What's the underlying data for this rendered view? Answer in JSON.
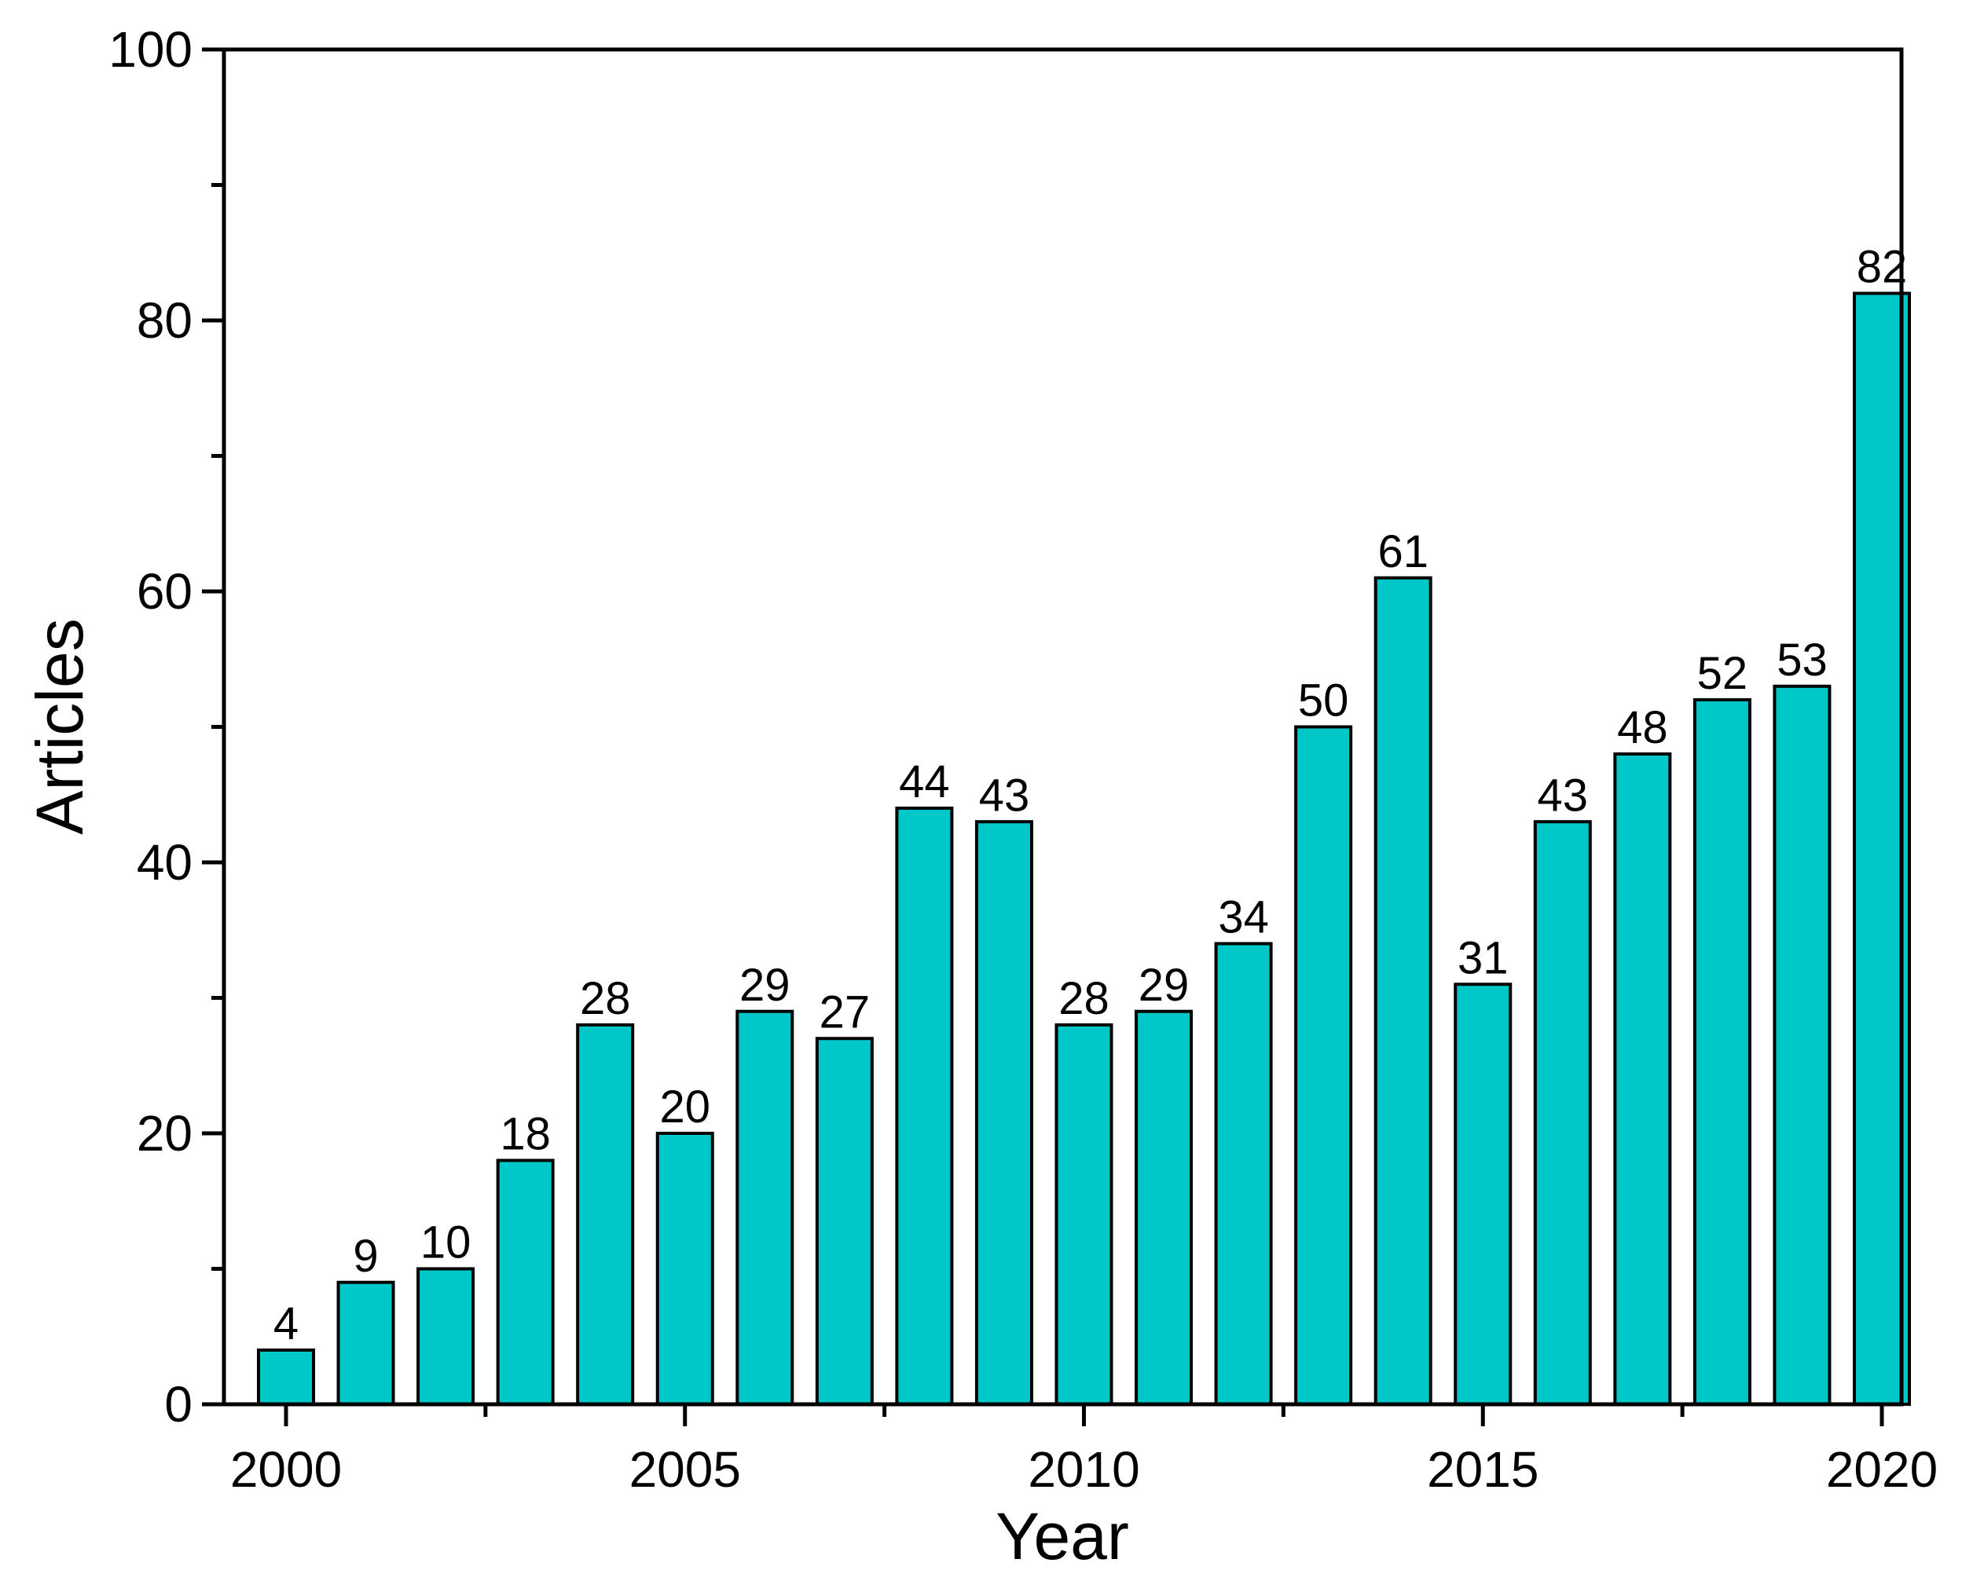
{
  "chart_data": {
    "type": "bar",
    "xlabel": "Year",
    "ylabel": "Articles",
    "categories": [
      "2000",
      "2001",
      "2002",
      "2003",
      "2004",
      "2005",
      "2006",
      "2007",
      "2008",
      "2009",
      "2010",
      "2011",
      "2012",
      "2013",
      "2014",
      "2015",
      "2016",
      "2017",
      "2018",
      "2019",
      "2020"
    ],
    "values": [
      4,
      9,
      10,
      18,
      28,
      20,
      29,
      27,
      44,
      43,
      28,
      29,
      34,
      50,
      61,
      31,
      43,
      48,
      52,
      53,
      82
    ],
    "ylim": [
      0,
      100
    ],
    "yticks": [
      "0",
      "20",
      "40",
      "60",
      "80",
      "100"
    ],
    "xtick_labels": [
      "2000",
      "2005",
      "2010",
      "2015",
      "2020"
    ],
    "bar_color": "#00C8C8",
    "show_data_labels": true,
    "grid": false,
    "legend": "none"
  }
}
